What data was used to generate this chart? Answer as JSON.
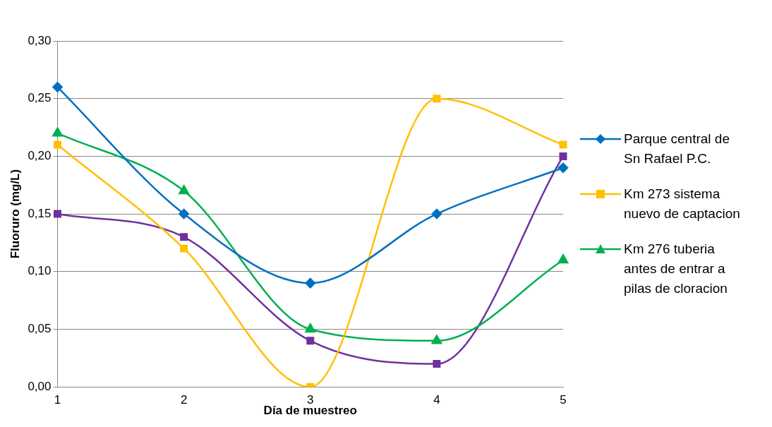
{
  "chart_data": {
    "type": "line",
    "xlabel": "Día de muestreo",
    "ylabel": "Fluoruro (mg/L)",
    "categories": [
      "1",
      "2",
      "3",
      "4",
      "5"
    ],
    "ylim": [
      0,
      0.3
    ],
    "yticks": [
      {
        "value": 0,
        "label": "0,00"
      },
      {
        "value": 0.05,
        "label": "0,05"
      },
      {
        "value": 0.1,
        "label": "0,10"
      },
      {
        "value": 0.15,
        "label": "0,15"
      },
      {
        "value": 0.2,
        "label": "0,20"
      },
      {
        "value": 0.25,
        "label": "0,25"
      },
      {
        "value": 0.3,
        "label": "0,30"
      }
    ],
    "grid": "y",
    "legend": "right",
    "series": [
      {
        "name": "Parque central de Sn Rafael P.C.",
        "color": "#0070c0",
        "marker": "diamond",
        "values": [
          0.26,
          0.15,
          0.09,
          0.15,
          0.19
        ]
      },
      {
        "name": "Km 273 sistema nuevo de captacion",
        "color": "#ffc000",
        "marker": "square",
        "values": [
          0.21,
          0.12,
          0.0,
          0.25,
          0.21
        ]
      },
      {
        "name": "Km 276 tuberia antes de entrar a pilas de cloracion",
        "color": "#00b050",
        "marker": "triangle",
        "values": [
          0.22,
          0.17,
          0.05,
          0.04,
          0.11
        ]
      },
      {
        "color": "#7030a0",
        "marker": "square",
        "values": [
          0.15,
          0.13,
          0.04,
          0.02,
          0.2
        ]
      }
    ]
  }
}
